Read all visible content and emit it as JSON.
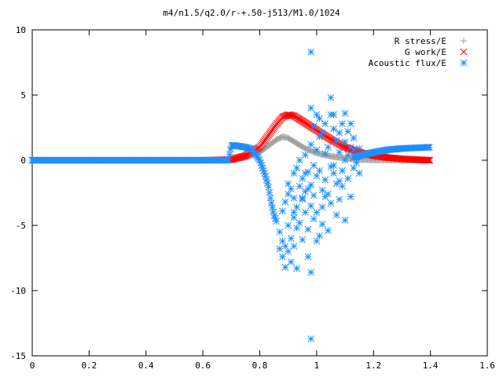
{
  "chart_data": {
    "type": "scatter",
    "title": "m4/n1.5/q2.0/r-+.50-j513/M1.0/1024",
    "xlabel": "",
    "ylabel": "",
    "xlim": [
      0,
      1.6
    ],
    "ylim": [
      -15,
      10
    ],
    "xticks": [
      "0",
      "0.2",
      "0.4",
      "0.6",
      "0.8",
      "1",
      "1.2",
      "1.4",
      "1.6"
    ],
    "yticks": [
      "10",
      "5",
      "0",
      "-5",
      "-10",
      "-15"
    ],
    "grid": false,
    "legend_position": "top-right",
    "series": [
      {
        "name": "R stress/E",
        "marker": "plus",
        "color": "#a0a0a0",
        "curve": {
          "x": [
            0,
            0.6,
            0.7,
            0.75,
            0.8,
            0.83,
            0.86,
            0.88,
            0.9,
            0.93,
            0.96,
            1.0,
            1.05,
            1.1,
            1.15,
            1.2,
            1.3,
            1.4
          ],
          "y": [
            0,
            0,
            0,
            0.2,
            0.6,
            1.1,
            1.6,
            1.8,
            1.7,
            1.3,
            0.9,
            0.55,
            0.3,
            0.15,
            0.05,
            0.02,
            0,
            0
          ]
        }
      },
      {
        "name": "G work/E",
        "marker": "cross",
        "color": "#ff0000",
        "curve": {
          "x": [
            0,
            0.6,
            0.7,
            0.75,
            0.8,
            0.83,
            0.86,
            0.88,
            0.9,
            0.92,
            0.95,
            1.0,
            1.05,
            1.1,
            1.15,
            1.2,
            1.25,
            1.3,
            1.35,
            1.4
          ],
          "y": [
            0,
            0,
            0.05,
            0.35,
            1.0,
            1.9,
            2.8,
            3.3,
            3.5,
            3.4,
            3.0,
            2.3,
            1.6,
            1.0,
            0.6,
            0.35,
            0.2,
            0.1,
            0.05,
            0
          ]
        }
      },
      {
        "name": "Acoustic flux/E",
        "marker": "star",
        "color": "#1e90ff",
        "curve": {
          "x": [
            0,
            0.69,
            0.7,
            0.72,
            0.75,
            0.77,
            0.78,
            0.8,
            0.82,
            0.83,
            0.84,
            0.85,
            0.86
          ],
          "y": [
            0,
            0,
            1.15,
            1.1,
            1.0,
            0.85,
            0.6,
            0.0,
            -1.2,
            -2.0,
            -3.2,
            -4.2,
            -4.8
          ]
        },
        "tail_curve": {
          "x": [
            1.13,
            1.15,
            1.2,
            1.25,
            1.3,
            1.35,
            1.4
          ],
          "y": [
            0.2,
            0.35,
            0.6,
            0.8,
            0.9,
            0.95,
            1.0
          ]
        },
        "points": [
          [
            0.87,
            -5.5
          ],
          [
            0.87,
            -6.8
          ],
          [
            0.88,
            -6.2
          ],
          [
            0.88,
            -7.4
          ],
          [
            0.89,
            -6.6
          ],
          [
            0.89,
            -8.2
          ],
          [
            0.9,
            -7.0
          ],
          [
            0.9,
            -5.0
          ],
          [
            0.91,
            -6.0
          ],
          [
            0.91,
            -7.8
          ],
          [
            0.92,
            -4.4
          ],
          [
            0.92,
            -6.6
          ],
          [
            0.93,
            -5.2
          ],
          [
            0.93,
            -8.3
          ],
          [
            0.88,
            -3.9
          ],
          [
            0.89,
            -3.2
          ],
          [
            0.9,
            -2.6
          ],
          [
            0.9,
            -1.8
          ],
          [
            0.91,
            -2.2
          ],
          [
            0.92,
            -1.0
          ],
          [
            0.92,
            -2.9
          ],
          [
            0.93,
            -0.6
          ],
          [
            0.93,
            -3.6
          ],
          [
            0.94,
            0.0
          ],
          [
            0.94,
            -2.0
          ],
          [
            0.94,
            -4.8
          ],
          [
            0.95,
            -1.4
          ],
          [
            0.95,
            -3.0
          ],
          [
            0.95,
            -6.1
          ],
          [
            0.96,
            0.4
          ],
          [
            0.96,
            -2.4
          ],
          [
            0.96,
            -4.0
          ],
          [
            0.97,
            -0.9
          ],
          [
            0.97,
            -5.3
          ],
          [
            0.97,
            -7.4
          ],
          [
            0.98,
            1.2
          ],
          [
            0.98,
            -1.9
          ],
          [
            0.98,
            -3.5
          ],
          [
            0.98,
            4.0
          ],
          [
            0.98,
            8.3
          ],
          [
            0.98,
            -8.6
          ],
          [
            0.98,
            -13.7
          ],
          [
            0.99,
            2.6
          ],
          [
            0.99,
            -0.4
          ],
          [
            0.99,
            -2.7
          ],
          [
            0.99,
            -4.5
          ],
          [
            1.0,
            3.5
          ],
          [
            1.0,
            -1.2
          ],
          [
            1.0,
            -6.2
          ],
          [
            1.0,
            -4.0
          ],
          [
            1.01,
            1.8
          ],
          [
            1.01,
            3.2
          ],
          [
            1.01,
            -0.8
          ],
          [
            1.01,
            -5.8
          ],
          [
            1.02,
            2.1
          ],
          [
            1.02,
            -2.3
          ],
          [
            1.02,
            -3.6
          ],
          [
            1.02,
            -4.9
          ],
          [
            1.03,
            0.5
          ],
          [
            1.03,
            -1.5
          ],
          [
            1.03,
            2.8
          ],
          [
            1.04,
            1.0
          ],
          [
            1.04,
            -2.6
          ],
          [
            1.04,
            -5.4
          ],
          [
            1.05,
            3.5
          ],
          [
            1.05,
            4.8
          ],
          [
            1.05,
            -0.5
          ],
          [
            1.05,
            -3.3
          ],
          [
            1.06,
            2.4
          ],
          [
            1.06,
            -1.0
          ],
          [
            1.06,
            3.5
          ],
          [
            1.07,
            1.5
          ],
          [
            1.07,
            -1.8
          ],
          [
            1.07,
            -4.2
          ],
          [
            1.08,
            2.1
          ],
          [
            1.08,
            0.6
          ],
          [
            1.08,
            -3.0
          ],
          [
            1.09,
            2.8
          ],
          [
            1.09,
            -0.8
          ],
          [
            1.09,
            -2.0
          ],
          [
            1.1,
            1.4
          ],
          [
            1.1,
            3.6
          ],
          [
            1.1,
            -4.6
          ],
          [
            1.11,
            0.4
          ],
          [
            1.11,
            2.2
          ],
          [
            1.11,
            -1.4
          ],
          [
            1.12,
            1.0
          ],
          [
            1.12,
            2.8
          ],
          [
            1.12,
            -2.8
          ],
          [
            1.13,
            0.8
          ],
          [
            1.13,
            -0.6
          ],
          [
            1.13,
            1.7
          ],
          [
            1.14,
            0.3
          ],
          [
            1.14,
            -0.2
          ],
          [
            1.15,
            0.9
          ],
          [
            1.15,
            -1.0
          ],
          [
            0.95,
            -2.9
          ],
          [
            0.96,
            -1.0
          ],
          [
            1.03,
            -2.8
          ],
          [
            1.06,
            -0.4
          ],
          [
            1.08,
            -1.6
          ],
          [
            1.1,
            0.0
          ],
          [
            0.92,
            -4.0
          ],
          [
            0.97,
            -2.2
          ],
          [
            1.0,
            0.8
          ]
        ]
      }
    ]
  }
}
